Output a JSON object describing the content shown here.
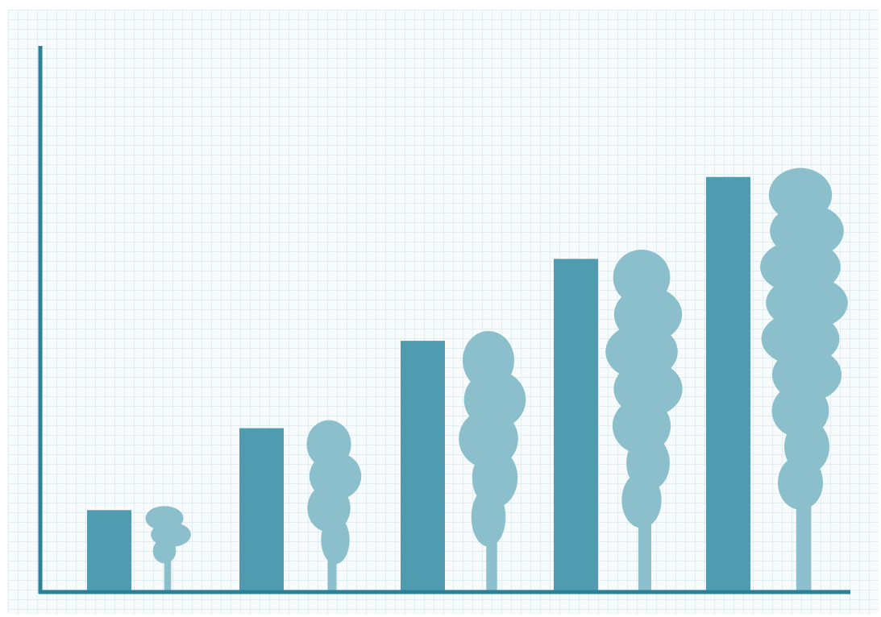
{
  "chart_data": {
    "type": "bar",
    "values": [
      15,
      30,
      46,
      61,
      76
    ],
    "color": "#4f9bb0",
    "tree_color": "#8cbfcc",
    "axis_color": "#2c8196",
    "ylim": [
      0,
      100
    ]
  }
}
